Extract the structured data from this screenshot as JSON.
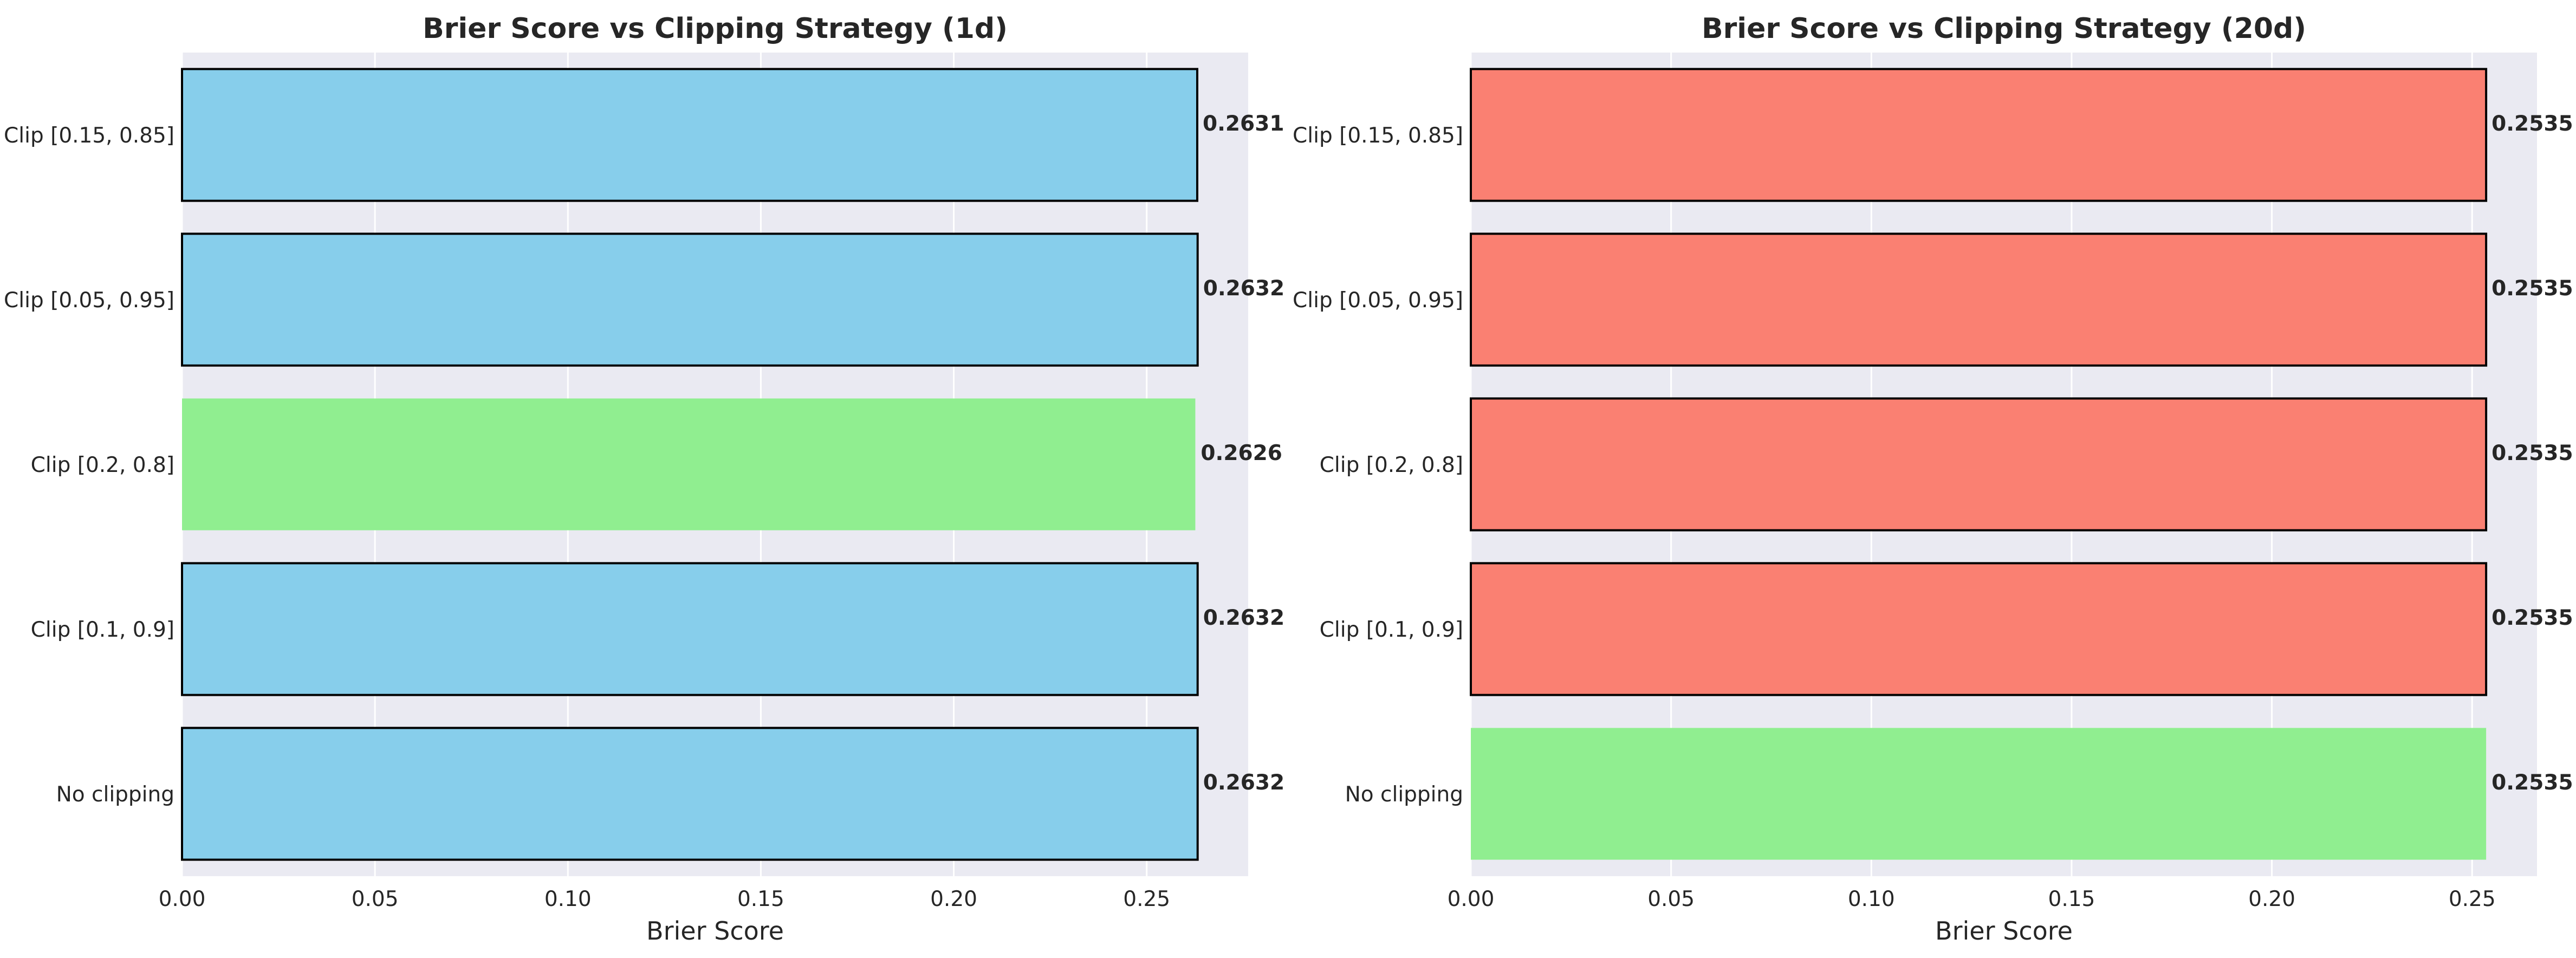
{
  "chart_data": [
    {
      "type": "bar",
      "orientation": "horizontal",
      "title": "Brier Score vs Clipping Strategy (1d)",
      "xlabel": "Brier Score",
      "ylabel": "",
      "xlim": [
        0,
        0.2763
      ],
      "xticks": [
        "0.00",
        "0.05",
        "0.10",
        "0.15",
        "0.20",
        "0.25"
      ],
      "categories": [
        "No clipping",
        "Clip [0.1, 0.9]",
        "Clip [0.2, 0.8]",
        "Clip [0.05, 0.95]",
        "Clip [0.15, 0.85]"
      ],
      "values": [
        0.2632,
        0.2632,
        0.2626,
        0.2632,
        0.2631
      ],
      "value_labels": [
        "0.2632",
        "0.2632",
        "0.2626",
        "0.2632",
        "0.2631"
      ],
      "colors": [
        "#87ceeb",
        "#87ceeb",
        "#90ee90",
        "#87ceeb",
        "#87ceeb"
      ],
      "highlighted": [
        false,
        false,
        true,
        false,
        false
      ],
      "grid": true,
      "background": "#eaeaf2"
    },
    {
      "type": "bar",
      "orientation": "horizontal",
      "title": "Brier Score vs Clipping Strategy (20d)",
      "xlabel": "Brier Score",
      "ylabel": "",
      "xlim": [
        0,
        0.2662
      ],
      "xticks": [
        "0.00",
        "0.05",
        "0.10",
        "0.15",
        "0.20",
        "0.25"
      ],
      "categories": [
        "No clipping",
        "Clip [0.1, 0.9]",
        "Clip [0.2, 0.8]",
        "Clip [0.05, 0.95]",
        "Clip [0.15, 0.85]"
      ],
      "values": [
        0.2535,
        0.2535,
        0.2535,
        0.2535,
        0.2535
      ],
      "value_labels": [
        "0.2535",
        "0.2535",
        "0.2535",
        "0.2535",
        "0.2535"
      ],
      "colors": [
        "#90ee90",
        "#fa8072",
        "#fa8072",
        "#fa8072",
        "#fa8072"
      ],
      "highlighted": [
        true,
        false,
        false,
        false,
        false
      ],
      "grid": true,
      "background": "#eaeaf2"
    }
  ]
}
